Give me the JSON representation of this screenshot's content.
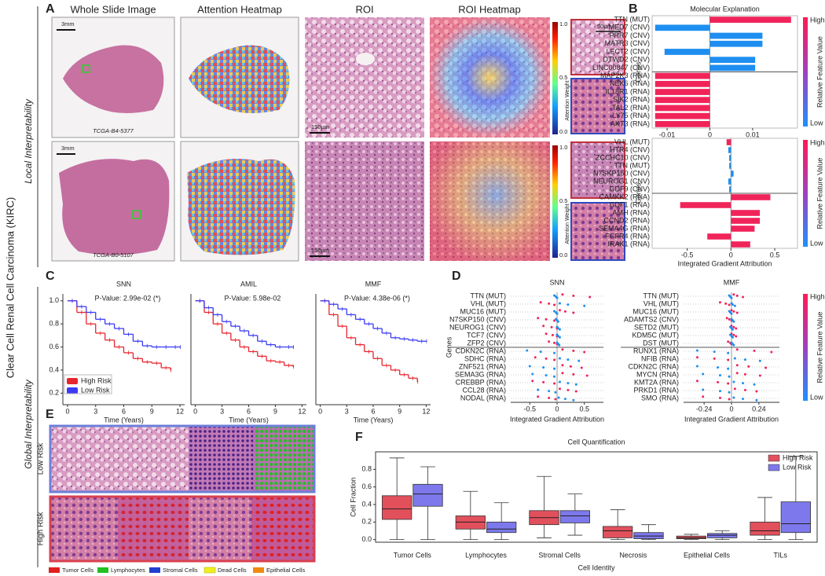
{
  "figure": {
    "side_title": "Clear Cell Renal Cell Carcinoma (KIRC)",
    "sections": [
      "Local Interpretability",
      "Global Interpretability"
    ],
    "panel_labels": [
      "A",
      "B",
      "C",
      "D",
      "E",
      "F"
    ],
    "panel_a": {
      "columns": [
        "Whole Slide Image",
        "Attention Heatmap",
        "ROI",
        "ROI Heatmap"
      ],
      "cases": [
        "TCGA-B4-5377",
        "TCGA-B0-5107"
      ],
      "scale_bars": [
        "3mm",
        "150µm",
        "50µm",
        "3mm",
        "150µm"
      ],
      "colorbar_title": "Attention Weight",
      "colorbar_ticks": [
        "1.0",
        "0.5",
        "0.0"
      ]
    },
    "panel_e": {
      "rows": [
        "Low Risk",
        "High Risk"
      ],
      "legend": [
        "Tumor Cells",
        "Lymphocytes",
        "Stromal Cells",
        "Dead Cells",
        "Epithelial Cells"
      ]
    }
  },
  "chart_data": [
    {
      "type": "bar",
      "horizontal": true,
      "title": "Molecular Explanation",
      "ylabel": "Genes",
      "categories": [
        "TTN (MUT)",
        "MED7 (CNV)",
        "PRR7 (CNV)",
        "MATR3 (CNV)",
        "LECT2 (CNV)",
        "DTWD2 (CNV)",
        "LINC00847 (CNV)",
        "MAP2K3 (RNA)",
        "NEK6 (RNA)",
        "IL18R1 (RNA)",
        "SIK2 (RNA)",
        "TAL2 (RNA)",
        "LY75 (RNA)",
        "AKT3 (RNA)"
      ],
      "values": [
        0.019,
        -0.0128,
        0.0123,
        0.0123,
        -0.0106,
        0.0106,
        0.0106,
        -0.0128,
        -0.0128,
        -0.0128,
        -0.0128,
        -0.0128,
        -0.0128,
        -0.0128
      ],
      "colors": [
        "#f0245a",
        "#1e8ff0",
        "#1e8ff0",
        "#1e8ff0",
        "#1e8ff0",
        "#1e8ff0",
        "#1e8ff0",
        "#f0245a",
        "#f0245a",
        "#f0245a",
        "#f0245a",
        "#f0245a",
        "#f0245a",
        "#f0245a"
      ],
      "xlim": [
        -0.0135,
        0.0205
      ],
      "xticks": [
        -0.01,
        0,
        0.01
      ],
      "colorbar": {
        "high": "High",
        "low": "Low",
        "title": "Relative Feature Value"
      }
    },
    {
      "type": "bar",
      "horizontal": true,
      "ylabel": "Genes",
      "xlabel": "Integrated Gradient Attribution",
      "categories": [
        "VHL (MUT)",
        "HTR4 (CNV)",
        "ZCCHC10 (CNV)",
        "TTN (MUT)",
        "N7SKP150 (CNV)",
        "NEUROG1 (CNV)",
        "GDF9 (CNV)",
        "CAMKK2 (RNA)",
        "GDF1 (RNA)",
        "AMH (RNA)",
        "CCND2 (RNA)",
        "SEMA4G (RNA)",
        "FGFR4 (RNA)",
        "IRAK1 (RNA)"
      ],
      "values": [
        -0.05,
        -0.03,
        -0.02,
        -0.02,
        0.03,
        -0.03,
        -0.02,
        0.45,
        -0.58,
        0.33,
        0.33,
        0.27,
        -0.27,
        0.22
      ],
      "colors": [
        "#f0245a",
        "#1e8ff0",
        "#1e8ff0",
        "#1e8ff0",
        "#1e8ff0",
        "#1e8ff0",
        "#1e8ff0",
        "#f0245a",
        "#f0245a",
        "#f0245a",
        "#f0245a",
        "#f0245a",
        "#f0245a",
        "#f0245a"
      ],
      "xlim": [
        -0.9,
        0.76
      ],
      "xticks": [
        -0.5,
        0,
        0.5
      ],
      "colorbar": {
        "high": "High",
        "low": "Low",
        "title": "Relative Feature Value"
      }
    },
    {
      "type": "line",
      "step": true,
      "title": "SNN",
      "annotation": "P-Value: 2.99e-02 (*)",
      "xlabel": "Time (Years)",
      "legend": "lower left",
      "x": [
        0,
        1,
        2,
        3,
        4,
        5,
        6,
        7,
        8,
        9,
        10,
        11,
        12
      ],
      "series": [
        {
          "name": "High Risk",
          "color": "#e8262e",
          "values": [
            1.0,
            0.9,
            0.8,
            0.72,
            0.66,
            0.6,
            0.55,
            0.5,
            0.47,
            0.46,
            0.42,
            0.4,
            null
          ]
        },
        {
          "name": "Low Risk",
          "color": "#3b3bf5",
          "values": [
            1.0,
            0.95,
            0.9,
            0.84,
            0.8,
            0.76,
            0.71,
            0.65,
            0.61,
            0.6,
            0.6,
            0.6,
            0.6
          ]
        }
      ],
      "xlim": [
        -0.5,
        12.5
      ],
      "xticks": [
        0,
        3,
        6,
        9,
        12
      ],
      "ylim": [
        0.1,
        1.06
      ],
      "yticks": [
        0.2,
        0.4,
        0.6,
        0.8,
        {
          "value": 1,
          "label": "1.0"
        }
      ]
    },
    {
      "type": "line",
      "step": true,
      "title": "AMIL",
      "annotation": "P-Value: 5.98e-02",
      "xlabel": "Time (Years)",
      "x": [
        0,
        1,
        2,
        3,
        4,
        5,
        6,
        7,
        8,
        9,
        10,
        11,
        12
      ],
      "series": [
        {
          "color": "#e8262e",
          "values": [
            1.0,
            0.9,
            0.8,
            0.72,
            0.66,
            0.6,
            0.56,
            0.52,
            0.48,
            0.47,
            0.44,
            0.43,
            null
          ]
        },
        {
          "color": "#3b3bf5",
          "values": [
            1.0,
            0.94,
            0.88,
            0.82,
            0.78,
            0.74,
            0.7,
            0.65,
            0.62,
            0.6,
            0.6,
            0.6,
            null
          ]
        }
      ],
      "xlim": [
        -0.5,
        12.5
      ],
      "xticks": [
        0,
        3,
        6,
        9,
        12
      ],
      "ylim": [
        0.1,
        1.06
      ]
    },
    {
      "type": "line",
      "step": true,
      "title": "MMF",
      "annotation": "P-Value: 4.38e-06 (*)",
      "xlabel": "Time (Years)",
      "x": [
        0,
        1,
        2,
        3,
        4,
        5,
        6,
        7,
        8,
        9,
        10,
        11,
        12
      ],
      "series": [
        {
          "color": "#e8262e",
          "values": [
            1.0,
            0.88,
            0.78,
            0.68,
            0.62,
            0.56,
            0.5,
            0.44,
            0.4,
            0.36,
            0.33,
            0.3,
            null
          ]
        },
        {
          "color": "#3b3bf5",
          "values": [
            1.0,
            0.97,
            0.93,
            0.88,
            0.84,
            0.8,
            0.76,
            0.72,
            0.68,
            0.67,
            0.66,
            0.65,
            0.65
          ]
        }
      ],
      "xlim": [
        -0.5,
        12.5
      ],
      "xticks": [
        0,
        3,
        6,
        9,
        12
      ],
      "ylim": [
        0.1,
        1.06
      ]
    },
    {
      "type": "strip",
      "title": "SNN",
      "ylabel": "Genes",
      "xlabel": "Integrated Gradient Attribution",
      "categories": [
        "TTN (MUT)",
        "VHL (MUT)",
        "MUC16 (MUT)",
        "N7SKP150 (CNV)",
        "NEUROG1 (CNV)",
        "TCF7 (CNV)",
        "ZFP2 (CNV)",
        "CDKN2C (RNA)",
        "SDHC (RNA)",
        "ZNF521 (RNA)",
        "SEMA3G (RNA)",
        "CREBBP (RNA)",
        "CCL28 (RNA)",
        "NODAL (RNA)"
      ],
      "series": [
        {
          "color": "#f0245a",
          "values": [
            [
              0.1,
              0.3,
              0.6
            ],
            [
              -0.3,
              -0.15,
              -0.05
            ],
            [
              0.05,
              0.15,
              0.3
            ],
            [
              -0.35,
              -0.2,
              -0.05
            ],
            [
              -0.25,
              -0.1,
              0.0
            ],
            [
              -0.2,
              -0.08,
              0.0
            ],
            [
              -0.15,
              -0.05,
              0.0
            ],
            [
              0.1,
              0.3,
              0.5
            ],
            [
              -0.4,
              -0.2,
              -0.05
            ],
            [
              0.1,
              0.25,
              0.45
            ],
            [
              0.1,
              0.3,
              0.55
            ],
            [
              -0.45,
              -0.25,
              -0.05
            ],
            [
              0.05,
              0.2,
              0.35
            ],
            [
              -0.35,
              -0.15,
              -0.03
            ]
          ]
        },
        {
          "color": "#1e8ff0",
          "values": [
            [
              -0.05,
              -0.02,
              0.0
            ],
            [
              0.05,
              0.2,
              0.5
            ],
            [
              -0.05,
              -0.02,
              0.0
            ],
            [
              -0.02,
              0.0,
              0.02
            ],
            [
              0.0,
              0.02,
              0.05
            ],
            [
              0.0,
              0.02,
              0.05
            ],
            [
              0.0,
              0.02,
              0.04
            ],
            [
              -0.55,
              -0.3,
              -0.05
            ],
            [
              0.05,
              0.2,
              0.4
            ],
            [
              -0.5,
              -0.25,
              -0.05
            ],
            [
              -0.45,
              -0.2,
              -0.05
            ],
            [
              0.05,
              0.2,
              0.35
            ],
            [
              -0.35,
              -0.15,
              -0.03
            ],
            [
              0.03,
              0.15,
              0.3
            ]
          ]
        }
      ],
      "xlim": [
        -0.85,
        0.85
      ],
      "xticks": [
        -0.5,
        0,
        0.5
      ]
    },
    {
      "type": "strip",
      "title": "MMF",
      "xlabel": "Integrated Gradient Attribution",
      "categories": [
        "TTN (MUT)",
        "VHL (MUT)",
        "MUC16 (MUT)",
        "ADAMTS2 (CNV)",
        "SETD2 (MUT)",
        "KDM5C (MUT)",
        "DST (MUT)",
        "RUNX1 (RNA)",
        "NFIB (RNA)",
        "CDKN2C (RNA)",
        "MYCN (RNA)",
        "KMT2A (RNA)",
        "PRKD1 (RNA)",
        "SMO (RNA)"
      ],
      "series": [
        {
          "color": "#f0245a",
          "values": [
            [
              0.02,
              0.05,
              0.1
            ],
            [
              -0.1,
              -0.05,
              -0.02
            ],
            [
              0.0,
              0.02,
              0.05
            ],
            [
              -0.04,
              -0.02,
              0.0
            ],
            [
              0.0,
              0.02,
              0.04
            ],
            [
              0.0,
              0.02,
              0.04
            ],
            [
              -0.03,
              -0.01,
              0.0
            ],
            [
              0.05,
              0.2,
              0.35
            ],
            [
              -0.3,
              -0.15,
              -0.03
            ],
            [
              0.05,
              0.15,
              0.3
            ],
            [
              0.05,
              0.12,
              0.25
            ],
            [
              -0.3,
              -0.12,
              -0.03
            ],
            [
              0.03,
              0.12,
              0.22
            ],
            [
              -0.25,
              -0.1,
              -0.02
            ]
          ]
        },
        {
          "color": "#1e8ff0",
          "values": [
            [
              -0.02,
              -0.01,
              0.0
            ],
            [
              0.0,
              0.01,
              0.03
            ],
            [
              -0.02,
              -0.01,
              0.0
            ],
            [
              0.0,
              0.01,
              0.02
            ],
            [
              -0.01,
              0.0,
              0.01
            ],
            [
              -0.01,
              0.0,
              0.01
            ],
            [
              0.0,
              0.01,
              0.02
            ],
            [
              -0.3,
              -0.15,
              -0.03
            ],
            [
              0.03,
              0.12,
              0.25
            ],
            [
              -0.3,
              -0.12,
              -0.03
            ],
            [
              -0.25,
              -0.1,
              -0.02
            ],
            [
              0.02,
              0.1,
              0.2
            ],
            [
              -0.25,
              -0.1,
              -0.02
            ],
            [
              0.02,
              0.1,
              0.22
            ]
          ]
        }
      ],
      "xlim": [
        -0.42,
        0.42
      ],
      "xticks": [
        -0.24,
        0,
        0.24
      ],
      "colorbar": {
        "high": "High",
        "low": "Low",
        "title": "Relative Feature Value"
      }
    },
    {
      "type": "box",
      "title": "Cell Quantification",
      "xlabel": "Cell Identity",
      "ylabel": "Cell Fraction",
      "legend": "upper right",
      "categories": [
        "Tumor Cells",
        "Lymphocytes",
        "Stromal Cells",
        "Necrosis",
        "Epithelial Cells",
        "TILs"
      ],
      "series": [
        {
          "name": "High Risk",
          "color": "#e2505c",
          "values": [
            [
              0.0,
              0.23,
              0.35,
              0.5,
              0.93
            ],
            [
              0.0,
              0.12,
              0.2,
              0.27,
              0.55
            ],
            [
              0.02,
              0.17,
              0.25,
              0.33,
              0.72
            ],
            [
              0.0,
              0.02,
              0.1,
              0.15,
              0.34
            ],
            [
              0.0,
              0.01,
              0.02,
              0.04,
              0.06
            ],
            [
              0.0,
              0.05,
              0.1,
              0.2,
              0.48
            ]
          ]
        },
        {
          "name": "Low Risk",
          "color": "#7d79ec",
          "values": [
            [
              0.0,
              0.38,
              0.52,
              0.63,
              0.83
            ],
            [
              0.0,
              0.08,
              0.12,
              0.2,
              0.42
            ],
            [
              0.05,
              0.19,
              0.27,
              0.33,
              0.52
            ],
            [
              0.0,
              0.01,
              0.04,
              0.08,
              0.17
            ],
            [
              0.0,
              0.02,
              0.05,
              0.07,
              0.1
            ],
            [
              0.0,
              0.08,
              0.18,
              0.43,
              0.95
            ]
          ]
        }
      ],
      "ylim": [
        -0.03,
        1.0
      ],
      "yticks": [
        {
          "value": 0,
          "label": "0.0"
        },
        0.2,
        0.4,
        0.6,
        0.8
      ]
    }
  ]
}
